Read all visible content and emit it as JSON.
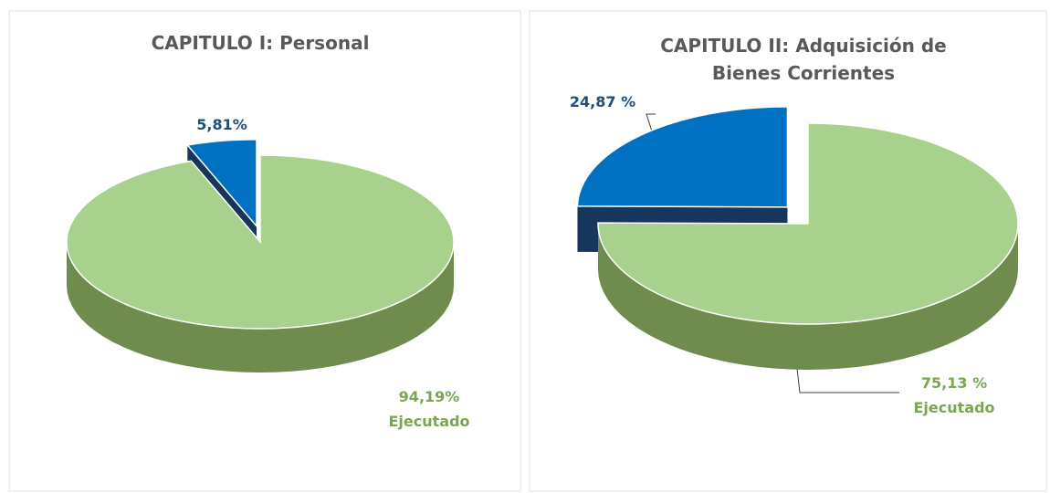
{
  "chart_data": [
    {
      "type": "pie",
      "title": "CAPITULO I: Personal",
      "categories": [
        "Ejecutado",
        null
      ],
      "values": [
        94.19,
        5.81
      ],
      "value_labels": [
        "94,19%",
        "5,81%"
      ],
      "colors": [
        "#a9d18e",
        "#0070c0"
      ],
      "exploded": [
        false,
        true
      ]
    },
    {
      "type": "pie",
      "title": "CAPITULO II: Adquisición de Bienes Corrientes",
      "categories": [
        "Ejecutado",
        null
      ],
      "values": [
        75.13,
        24.87
      ],
      "value_labels": [
        "75,13 %",
        "24,87 %"
      ],
      "colors": [
        "#a9d18e",
        "#0070c0"
      ],
      "exploded": [
        false,
        true
      ]
    }
  ]
}
